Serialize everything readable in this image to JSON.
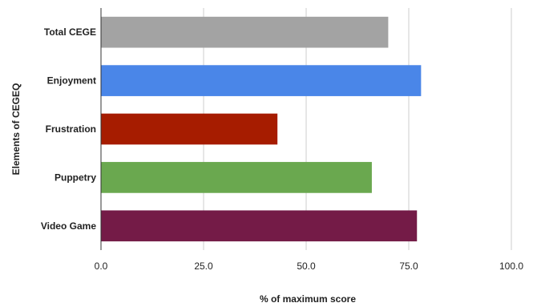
{
  "chart_data": {
    "type": "bar",
    "orientation": "horizontal",
    "categories": [
      "Total CEGE",
      "Enjoyment",
      "Frustration",
      "Puppetry",
      "Video Game"
    ],
    "values": [
      70,
      78,
      43,
      66,
      77
    ],
    "colors": [
      "#a3a3a3",
      "#4a86e8",
      "#a61c00",
      "#6aa84f",
      "#741b47"
    ],
    "xlabel": "% of maximum score",
    "ylabel": "Elements of CEGEQ",
    "xlim": [
      0,
      100
    ],
    "xticks": [
      "0.0",
      "25.0",
      "50.0",
      "75.0",
      "100.0"
    ],
    "grid": true
  }
}
